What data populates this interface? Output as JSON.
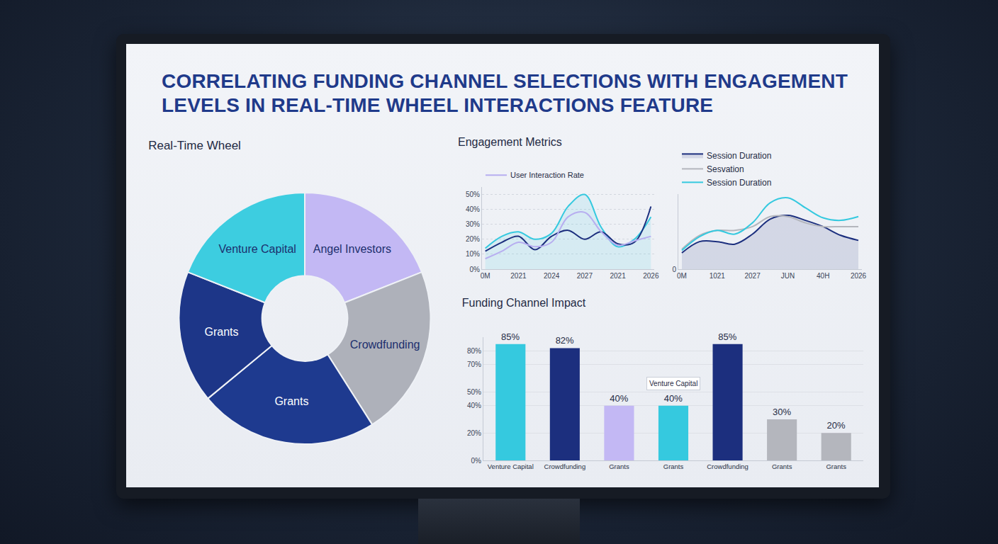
{
  "title": "CORRELATING FUNDING CHANNEL SELECTIONS WITH ENGAGEMENT LEVELS IN REAL-TIME WHEEL INTERACTIONS FEATURE",
  "chart_data": [
    {
      "type": "pie",
      "title": "Real-Time Wheel",
      "categories": [
        "Angel Investors",
        "Crowdfunding",
        "Grants",
        "Grants",
        "Venture Capital"
      ],
      "values": [
        19,
        22,
        23,
        17,
        19
      ],
      "colors": [
        "#c3b8f4",
        "#aeb1ba",
        "#1e3a8f",
        "#1d3688",
        "#3dcde0"
      ],
      "data_labels": true
    },
    {
      "type": "line",
      "title": "Engagement Metrics",
      "categories": [
        "0M",
        null,
        "2021",
        null,
        "2024",
        null,
        "2027",
        null,
        "2021",
        null,
        "2026"
      ],
      "series": [
        {
          "color": "#35c9df",
          "values": [
            14,
            22,
            25,
            20,
            24,
            42,
            50,
            28,
            15,
            20,
            35
          ]
        },
        {
          "color": "#1c2f7e",
          "values": [
            12,
            18,
            22,
            13,
            22,
            26,
            20,
            25,
            17,
            18,
            42
          ]
        },
        {
          "name": "User Interaction Rate",
          "color": "#b7aef0",
          "values": [
            7,
            12,
            18,
            15,
            18,
            35,
            38,
            25,
            16,
            19,
            22
          ]
        }
      ],
      "ylim": [
        0,
        55
      ],
      "yticks": [
        {
          "value": 0,
          "label": "0%"
        },
        {
          "value": 10,
          "label": "10%"
        },
        {
          "value": 20,
          "label": "20%"
        },
        {
          "value": 30,
          "label": "30%"
        },
        {
          "value": 40,
          "label": "40%"
        },
        {
          "value": 50,
          "label": "50%"
        }
      ],
      "grid": true,
      "legend": "top-left",
      "line_style": "smooth"
    },
    {
      "type": "line",
      "categories": [
        "0M",
        null,
        "1021",
        null,
        "2027",
        null,
        "JUN",
        null,
        "40H",
        null,
        "2026"
      ],
      "series": [
        {
          "name": "Session Duration",
          "color": "#1c2f7e",
          "values": [
            13,
            22,
            22,
            20,
            28,
            40,
            43,
            39,
            34,
            27,
            23
          ]
        },
        {
          "name": "Sesvation",
          "color": "#b4b6bd",
          "values": [
            16,
            27,
            31,
            31,
            34,
            42,
            42,
            37,
            34,
            34,
            34
          ]
        },
        {
          "name": "Session Duration",
          "color": "#35c9df",
          "values": [
            15,
            26,
            31,
            28,
            37,
            53,
            57,
            49,
            41,
            39,
            42
          ]
        }
      ],
      "ylim": [
        0,
        60
      ],
      "yticks": [
        0
      ],
      "grid": false,
      "legend": "top-left",
      "line_style": "smooth"
    },
    {
      "type": "bar",
      "title": "Funding Channel Impact",
      "categories": [
        "Venture Capital",
        "Crowdfunding",
        "Grants",
        "Grants",
        "Crowdfunding",
        "Grants",
        "Grants"
      ],
      "values": [
        85,
        82,
        40,
        40,
        85,
        30,
        20
      ],
      "value_labels": [
        "85%",
        "82%",
        "40%",
        "40%",
        "85%",
        "30%",
        "20%"
      ],
      "colors": [
        "#35c9df",
        "#1c2f7e",
        "#c3b8f4",
        "#35c9df",
        "#1c2f7e",
        "#b4b6bd",
        "#b4b6bd"
      ],
      "ylim": [
        0,
        90
      ],
      "yticks": [
        {
          "value": 0,
          "label": "0%"
        },
        {
          "value": 20,
          "label": "20%"
        },
        {
          "value": 40,
          "label": "40%"
        },
        {
          "value": 50,
          "label": "50%"
        },
        {
          "value": 70,
          "label": "70%"
        },
        {
          "value": 80,
          "label": "80%"
        }
      ],
      "grid": true,
      "data_labels": true,
      "annotations": [
        {
          "text": "Venture Capital",
          "x": 3
        }
      ]
    }
  ]
}
